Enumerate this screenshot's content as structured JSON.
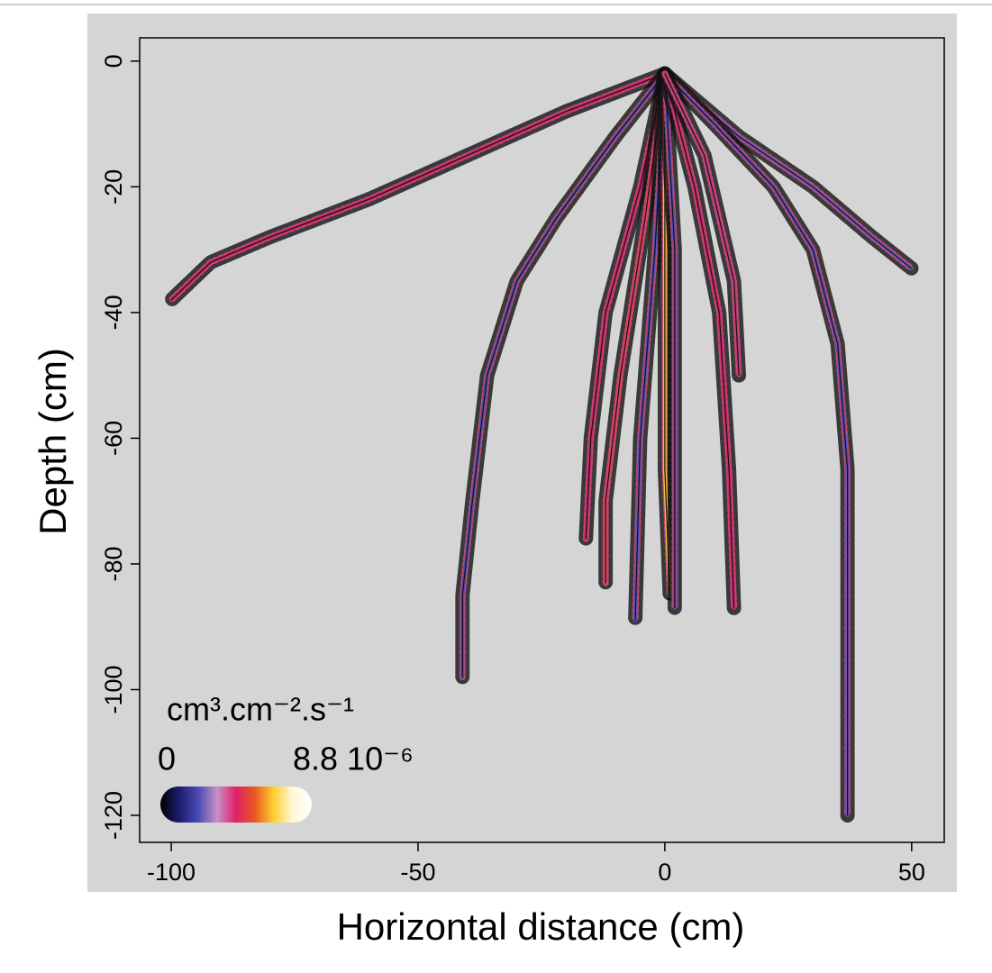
{
  "chart_data": {
    "type": "line",
    "xlabel": "Horizontal distance (cm)",
    "ylabel": "Depth (cm)",
    "xlim": [
      -106.4,
      56.6
    ],
    "ylim": [
      -124.3,
      3.7
    ],
    "xticks": [
      -100,
      -50,
      0,
      50
    ],
    "yticks": [
      0,
      -20,
      -40,
      -60,
      -80,
      -100,
      -120
    ],
    "colorbar": {
      "title": "cm³.cm⁻².s⁻¹",
      "min": 0,
      "max": {
        "value": 8.8e-06,
        "label": "8.8 10⁻⁶"
      },
      "colors": [
        "#000000",
        "#1c1c70",
        "#4a4ab4",
        "#c890c8",
        "#e0206a",
        "#e85a20",
        "#ffd030",
        "#fff8d8",
        "#ffffff"
      ]
    },
    "series": [
      {
        "color": "#d02870",
        "x": [
          0,
          -20,
          -40,
          -60,
          -80,
          -92,
          -100
        ],
        "values": [
          -2,
          -8,
          -15,
          -22,
          -28,
          -32,
          -38
        ]
      },
      {
        "color": "#6a5ac0",
        "x": [
          0,
          15,
          30,
          42,
          50
        ],
        "values": [
          -2,
          -12,
          -20,
          -28,
          -33
        ]
      },
      {
        "color": "#5a50b8",
        "x": [
          0,
          10,
          22,
          30,
          35,
          37,
          37,
          37
        ],
        "values": [
          -2,
          -10,
          -20,
          -30,
          -45,
          -65,
          -90,
          -120
        ]
      },
      {
        "color": "#5050b0",
        "x": [
          0,
          -10,
          -22,
          -30,
          -36,
          -39,
          -41,
          -41
        ],
        "values": [
          -2,
          -12,
          -25,
          -35,
          -50,
          -70,
          -85,
          -98
        ]
      },
      {
        "color": "#d02870",
        "x": [
          0,
          -5,
          -12,
          -15,
          -16
        ],
        "values": [
          -2,
          -20,
          -40,
          -60,
          -76
        ]
      },
      {
        "color": "#e04060",
        "x": [
          0,
          -4,
          -9,
          -12,
          -12
        ],
        "values": [
          -2,
          -25,
          -50,
          -70,
          -83
        ]
      },
      {
        "color": "#5a50b8",
        "x": [
          0,
          -2,
          -5,
          -6
        ],
        "values": [
          -2,
          -30,
          -60,
          -89
        ]
      },
      {
        "color": "#f0c040",
        "x": [
          0,
          0,
          0,
          1
        ],
        "values": [
          -2,
          -40,
          -65,
          -85
        ]
      },
      {
        "color": "#5a50b8",
        "x": [
          0,
          2,
          2,
          2
        ],
        "values": [
          -2,
          -30,
          -60,
          -87
        ]
      },
      {
        "color": "#d02870",
        "x": [
          0,
          6,
          11,
          13,
          14
        ],
        "values": [
          -2,
          -20,
          -40,
          -65,
          -87
        ]
      },
      {
        "color": "#c04080",
        "x": [
          0,
          8,
          14,
          15
        ],
        "values": [
          -2,
          -15,
          -35,
          -50
        ]
      }
    ]
  }
}
